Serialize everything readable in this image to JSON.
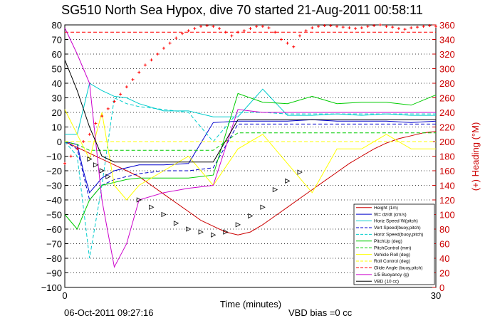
{
  "chart_data": {
    "type": "line",
    "title": "SG510 North Sea Hypox, dive 70 started 21-Aug-2011 00:58:11",
    "xlabel": "Time (minutes)",
    "ylabel": "",
    "y2label": "(+) Heading (°M)",
    "xlim": [
      0,
      30
    ],
    "ylim": [
      -100,
      80
    ],
    "y2lim": [
      0,
      360
    ],
    "xticks": [
      "0",
      "30"
    ],
    "yticks": [
      "80",
      "70",
      "60",
      "50",
      "40",
      "30",
      "20",
      "10",
      "0",
      "−10",
      "−20",
      "−30",
      "−40",
      "−50",
      "−60",
      "−70",
      "−80",
      "−90",
      "−100"
    ],
    "y2ticks": [
      "360",
      "340",
      "320",
      "300",
      "280",
      "260",
      "240",
      "220",
      "200",
      "180",
      "160",
      "140",
      "120",
      "100",
      "80",
      "60",
      "40",
      "20",
      "0"
    ],
    "grid": "horizontal dotted",
    "legend_position": "bottom-right",
    "date_stamp": "06-Oct-2011 09:27:16",
    "bias_text": "VBD bias =0 cc",
    "colors": {
      "red": "#ff0000",
      "darkred": "#cc0000",
      "blue": "#0000cc",
      "cyan": "#00cccc",
      "green": "#00cc00",
      "yellow": "#ffff00",
      "magenta": "#cc00cc",
      "black": "#000000"
    },
    "series": [
      {
        "name": "Height (1m)",
        "color": "#cc0000",
        "dash": "none",
        "x": [
          0,
          1,
          2,
          3,
          4,
          5,
          6,
          7,
          8,
          9,
          10,
          11,
          12,
          13,
          14,
          15,
          16,
          17,
          18,
          19,
          20,
          21,
          22,
          23,
          24,
          25,
          26,
          27,
          28,
          29,
          30
        ],
        "y": [
          0,
          -4,
          -8,
          -12,
          -16,
          -20,
          -24,
          -30,
          -36,
          -42,
          -48,
          -54,
          -58,
          -62,
          -64,
          -62,
          -57,
          -51,
          -45,
          -39,
          -33,
          -27,
          -21,
          -15,
          -10,
          -5,
          -1,
          2,
          4,
          6,
          7
        ]
      },
      {
        "name": "W= dz/dt (cm/s)",
        "color": "#0000cc",
        "dash": "none",
        "x": [
          0,
          1,
          1.5,
          2,
          3,
          4,
          5,
          6,
          8,
          10,
          12,
          14,
          16,
          18,
          20,
          22,
          24,
          26,
          28,
          30
        ],
        "y": [
          0,
          -2,
          -20,
          -35,
          -25,
          -20,
          -18,
          -16,
          -16,
          -15,
          13,
          14,
          14,
          14,
          15,
          14,
          14,
          14,
          13,
          14
        ]
      },
      {
        "name": "Horiz Speed W(pitch)",
        "color": "#00cccc",
        "dash": "none",
        "x": [
          0,
          1,
          2,
          3,
          4,
          5,
          6,
          8,
          10,
          12,
          14,
          16,
          18,
          20,
          22,
          24,
          26,
          28,
          30
        ],
        "y": [
          5,
          5,
          40,
          35,
          31,
          30,
          26,
          21,
          21,
          17,
          17,
          36,
          18,
          18,
          19,
          18,
          19,
          18,
          18
        ]
      },
      {
        "name": "Vert Speed(buoy,pitch)",
        "color": "#0000cc",
        "dash": "dash",
        "x": [
          0,
          1,
          2,
          3,
          4,
          5,
          6,
          8,
          10,
          12,
          14,
          16,
          18,
          20,
          22,
          24,
          26,
          28,
          30
        ],
        "y": [
          0,
          -5,
          -40,
          -30,
          -26,
          -24,
          -22,
          -20,
          -20,
          -18,
          12,
          12,
          12,
          12,
          12,
          12,
          12,
          12,
          12
        ]
      },
      {
        "name": "Horiz Speed(buoy,pitch)",
        "color": "#00cccc",
        "dash": "dash",
        "x": [
          0,
          1,
          2,
          3,
          4,
          5,
          6,
          8,
          10,
          12,
          14,
          16,
          18,
          20,
          22,
          24,
          26,
          28,
          30
        ],
        "y": [
          0,
          -10,
          -80,
          -30,
          30,
          26,
          24,
          22,
          20,
          0,
          20,
          20,
          19,
          19,
          19,
          19,
          19,
          19,
          19
        ]
      },
      {
        "name": "PitchUp (deg)",
        "color": "#00cc00",
        "dash": "none",
        "x": [
          0,
          1,
          2,
          3,
          4,
          5,
          6,
          8,
          10,
          12,
          14,
          16,
          18,
          20,
          22,
          24,
          26,
          28,
          30
        ],
        "y": [
          -50,
          -60,
          -40,
          -30,
          -28,
          -26,
          -25,
          -25,
          -25,
          -23,
          33,
          27,
          26,
          31,
          26,
          27,
          27,
          25,
          32
        ]
      },
      {
        "name": "PitchControl (mm)",
        "color": "#00cc00",
        "dash": "dash",
        "x": [
          0,
          1,
          2,
          3,
          4,
          5,
          6,
          8,
          10,
          12,
          14,
          16,
          18,
          20,
          22,
          24,
          26,
          28,
          30
        ],
        "y": [
          0,
          -2,
          -6,
          -6,
          -6,
          -6,
          -6,
          -6,
          -6,
          -6,
          6,
          6,
          6,
          6,
          6,
          6,
          6,
          6,
          6
        ]
      },
      {
        "name": "Vehicle Roll (deg)",
        "color": "#ffff00",
        "dash": "none",
        "x": [
          0,
          1,
          2,
          3,
          4,
          5,
          6,
          8,
          10,
          12,
          14,
          16,
          18,
          20,
          22,
          24,
          26,
          28,
          30
        ],
        "y": [
          22,
          5,
          -12,
          20,
          -30,
          -40,
          -30,
          -20,
          -10,
          -30,
          -5,
          5,
          -15,
          -35,
          -5,
          -5,
          5,
          -5,
          -5
        ]
      },
      {
        "name": "Roll Control (deg)",
        "color": "#ffff00",
        "dash": "dash",
        "x": [
          0,
          2,
          4,
          6,
          8,
          10,
          12,
          14,
          16,
          18,
          20,
          22,
          24,
          26,
          28,
          30
        ],
        "y": [
          0,
          0,
          0,
          0,
          0,
          0,
          0,
          0,
          0,
          0,
          0,
          0,
          0,
          0,
          0,
          0
        ]
      },
      {
        "name": "Glide Angle (buoy,pitch)",
        "color": "#ff0000",
        "dash": "dash",
        "x": [
          0,
          30
        ],
        "y": [
          75,
          75
        ]
      },
      {
        "name": "1/5 Buoyancy (g)",
        "color": "#cc00cc",
        "dash": "none",
        "x": [
          0,
          1,
          2,
          3,
          4,
          5,
          6,
          8,
          10,
          12,
          14,
          16,
          18,
          20,
          22,
          24,
          26,
          28,
          30
        ],
        "y": [
          78,
          60,
          40,
          -40,
          -86,
          -70,
          -40,
          -35,
          -32,
          -30,
          22,
          20,
          20,
          20,
          20,
          20,
          20,
          20,
          20
        ]
      },
      {
        "name": "VBD (10 cc)",
        "color": "#000000",
        "dash": "none",
        "x": [
          0,
          1,
          2,
          3,
          4,
          5,
          6,
          8,
          10,
          12,
          14,
          16,
          18,
          20,
          22,
          24,
          26,
          28,
          30
        ],
        "y": [
          56,
          35,
          10,
          -10,
          -14,
          -14,
          -14,
          -14,
          -14,
          -14,
          15,
          15,
          15,
          15,
          15,
          15,
          15,
          15,
          15
        ]
      }
    ],
    "heading_points": {
      "name": "Heading",
      "color": "#ff0000",
      "x": [
        0,
        0.5,
        1,
        1.5,
        2,
        2.5,
        3,
        3.5,
        4,
        4.5,
        5,
        5.5,
        6,
        6.5,
        7,
        7.5,
        8,
        8.5,
        9,
        9.5,
        10,
        10.5,
        11,
        11.5,
        12,
        12.5,
        13,
        13.5,
        14,
        14.5,
        15,
        15.5,
        16,
        16.5,
        17,
        17.5,
        18,
        18.5,
        19,
        19.5,
        20,
        20.5,
        21,
        21.5,
        22,
        22.5,
        23,
        23.5,
        24,
        24.5,
        25,
        25.5,
        26,
        26.5,
        27,
        27.5,
        28,
        28.5,
        29,
        29.5,
        30
      ],
      "y": [
        170,
        180,
        190,
        200,
        210,
        225,
        235,
        245,
        255,
        265,
        275,
        285,
        295,
        305,
        312,
        320,
        328,
        335,
        342,
        348,
        352,
        355,
        358,
        359,
        358,
        355,
        350,
        345,
        350,
        352,
        355,
        358,
        358,
        356,
        350,
        340,
        335,
        330,
        345,
        352,
        356,
        358,
        359,
        359,
        358,
        357,
        356,
        355,
        356,
        358,
        359,
        360,
        358,
        357,
        355,
        354,
        356,
        357,
        358,
        359,
        358
      ]
    },
    "triangle_markers": {
      "color": "#000000",
      "x": [
        2,
        2.5,
        3,
        3.5,
        6,
        7,
        8,
        9,
        10,
        11,
        12,
        13,
        14,
        15,
        16,
        17,
        18,
        19
      ],
      "y": [
        -12,
        -16,
        -20,
        -24,
        -40,
        -45,
        -50,
        -56,
        -60,
        -62,
        -64,
        -62,
        -57,
        -51,
        -45,
        -33,
        -27,
        -21
      ]
    }
  }
}
